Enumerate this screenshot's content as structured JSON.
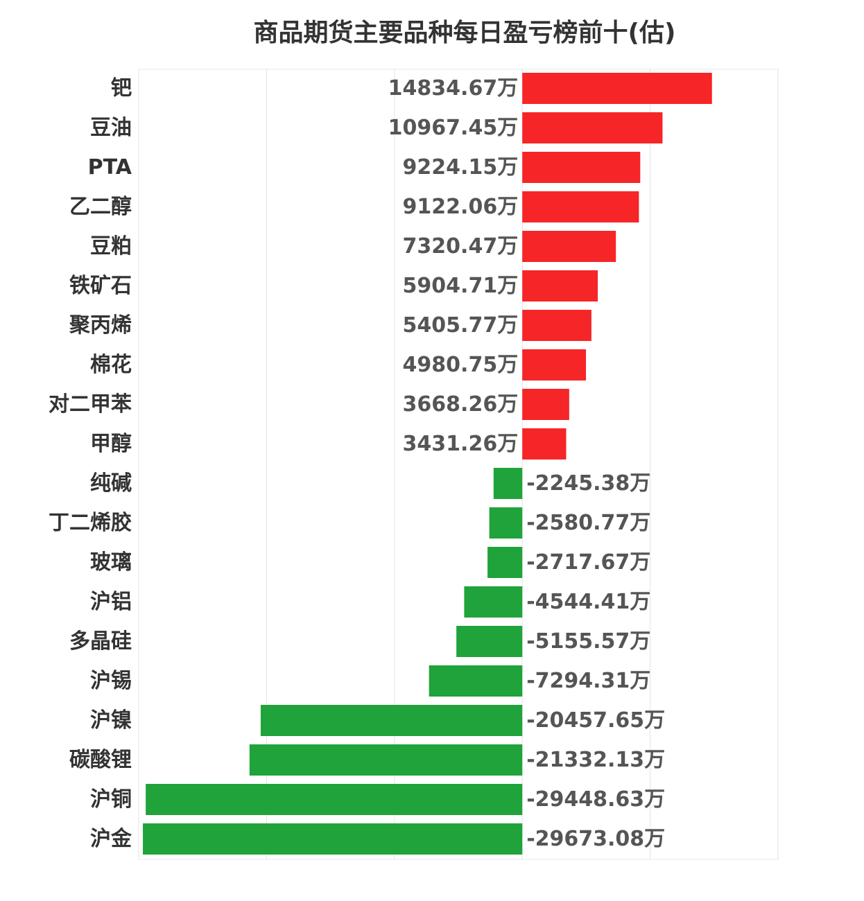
{
  "chart_data": {
    "type": "bar",
    "orientation": "horizontal",
    "title": "商品期货主要品种每日盈亏榜前十(估)",
    "unit": "万",
    "grid": true,
    "colors": {
      "positive": "#f52528",
      "negative": "#20a33a"
    },
    "categories": [
      "钯",
      "豆油",
      "PTA",
      "乙二醇",
      "豆粕",
      "铁矿石",
      "聚丙烯",
      "棉花",
      "对二甲苯",
      "甲醇",
      "纯碱",
      "丁二烯胶",
      "玻璃",
      "沪铝",
      "多晶硅",
      "沪锡",
      "沪镍",
      "碳酸锂",
      "沪铜",
      "沪金"
    ],
    "values": [
      14834.67,
      10967.45,
      9224.15,
      9122.06,
      7320.47,
      5904.71,
      5405.77,
      4980.75,
      3668.26,
      3431.26,
      -2245.38,
      -2580.77,
      -2717.67,
      -4544.41,
      -5155.57,
      -7294.31,
      -20457.65,
      -21332.13,
      -29448.63,
      -29673.08
    ],
    "value_labels": [
      "14834.67万",
      "10967.45万",
      "9224.15万",
      "9122.06万",
      "7320.47万",
      "5904.71万",
      "5405.77万",
      "4980.75万",
      "3668.26万",
      "3431.26万",
      "-2245.38万",
      "-2580.77万",
      "-2717.67万",
      "-4544.41万",
      "-5155.57万",
      "-7294.31万",
      "-20457.65万",
      "-21332.13万",
      "-29448.63万",
      "-29673.08万"
    ],
    "xlim": [
      -30000,
      20000
    ]
  }
}
